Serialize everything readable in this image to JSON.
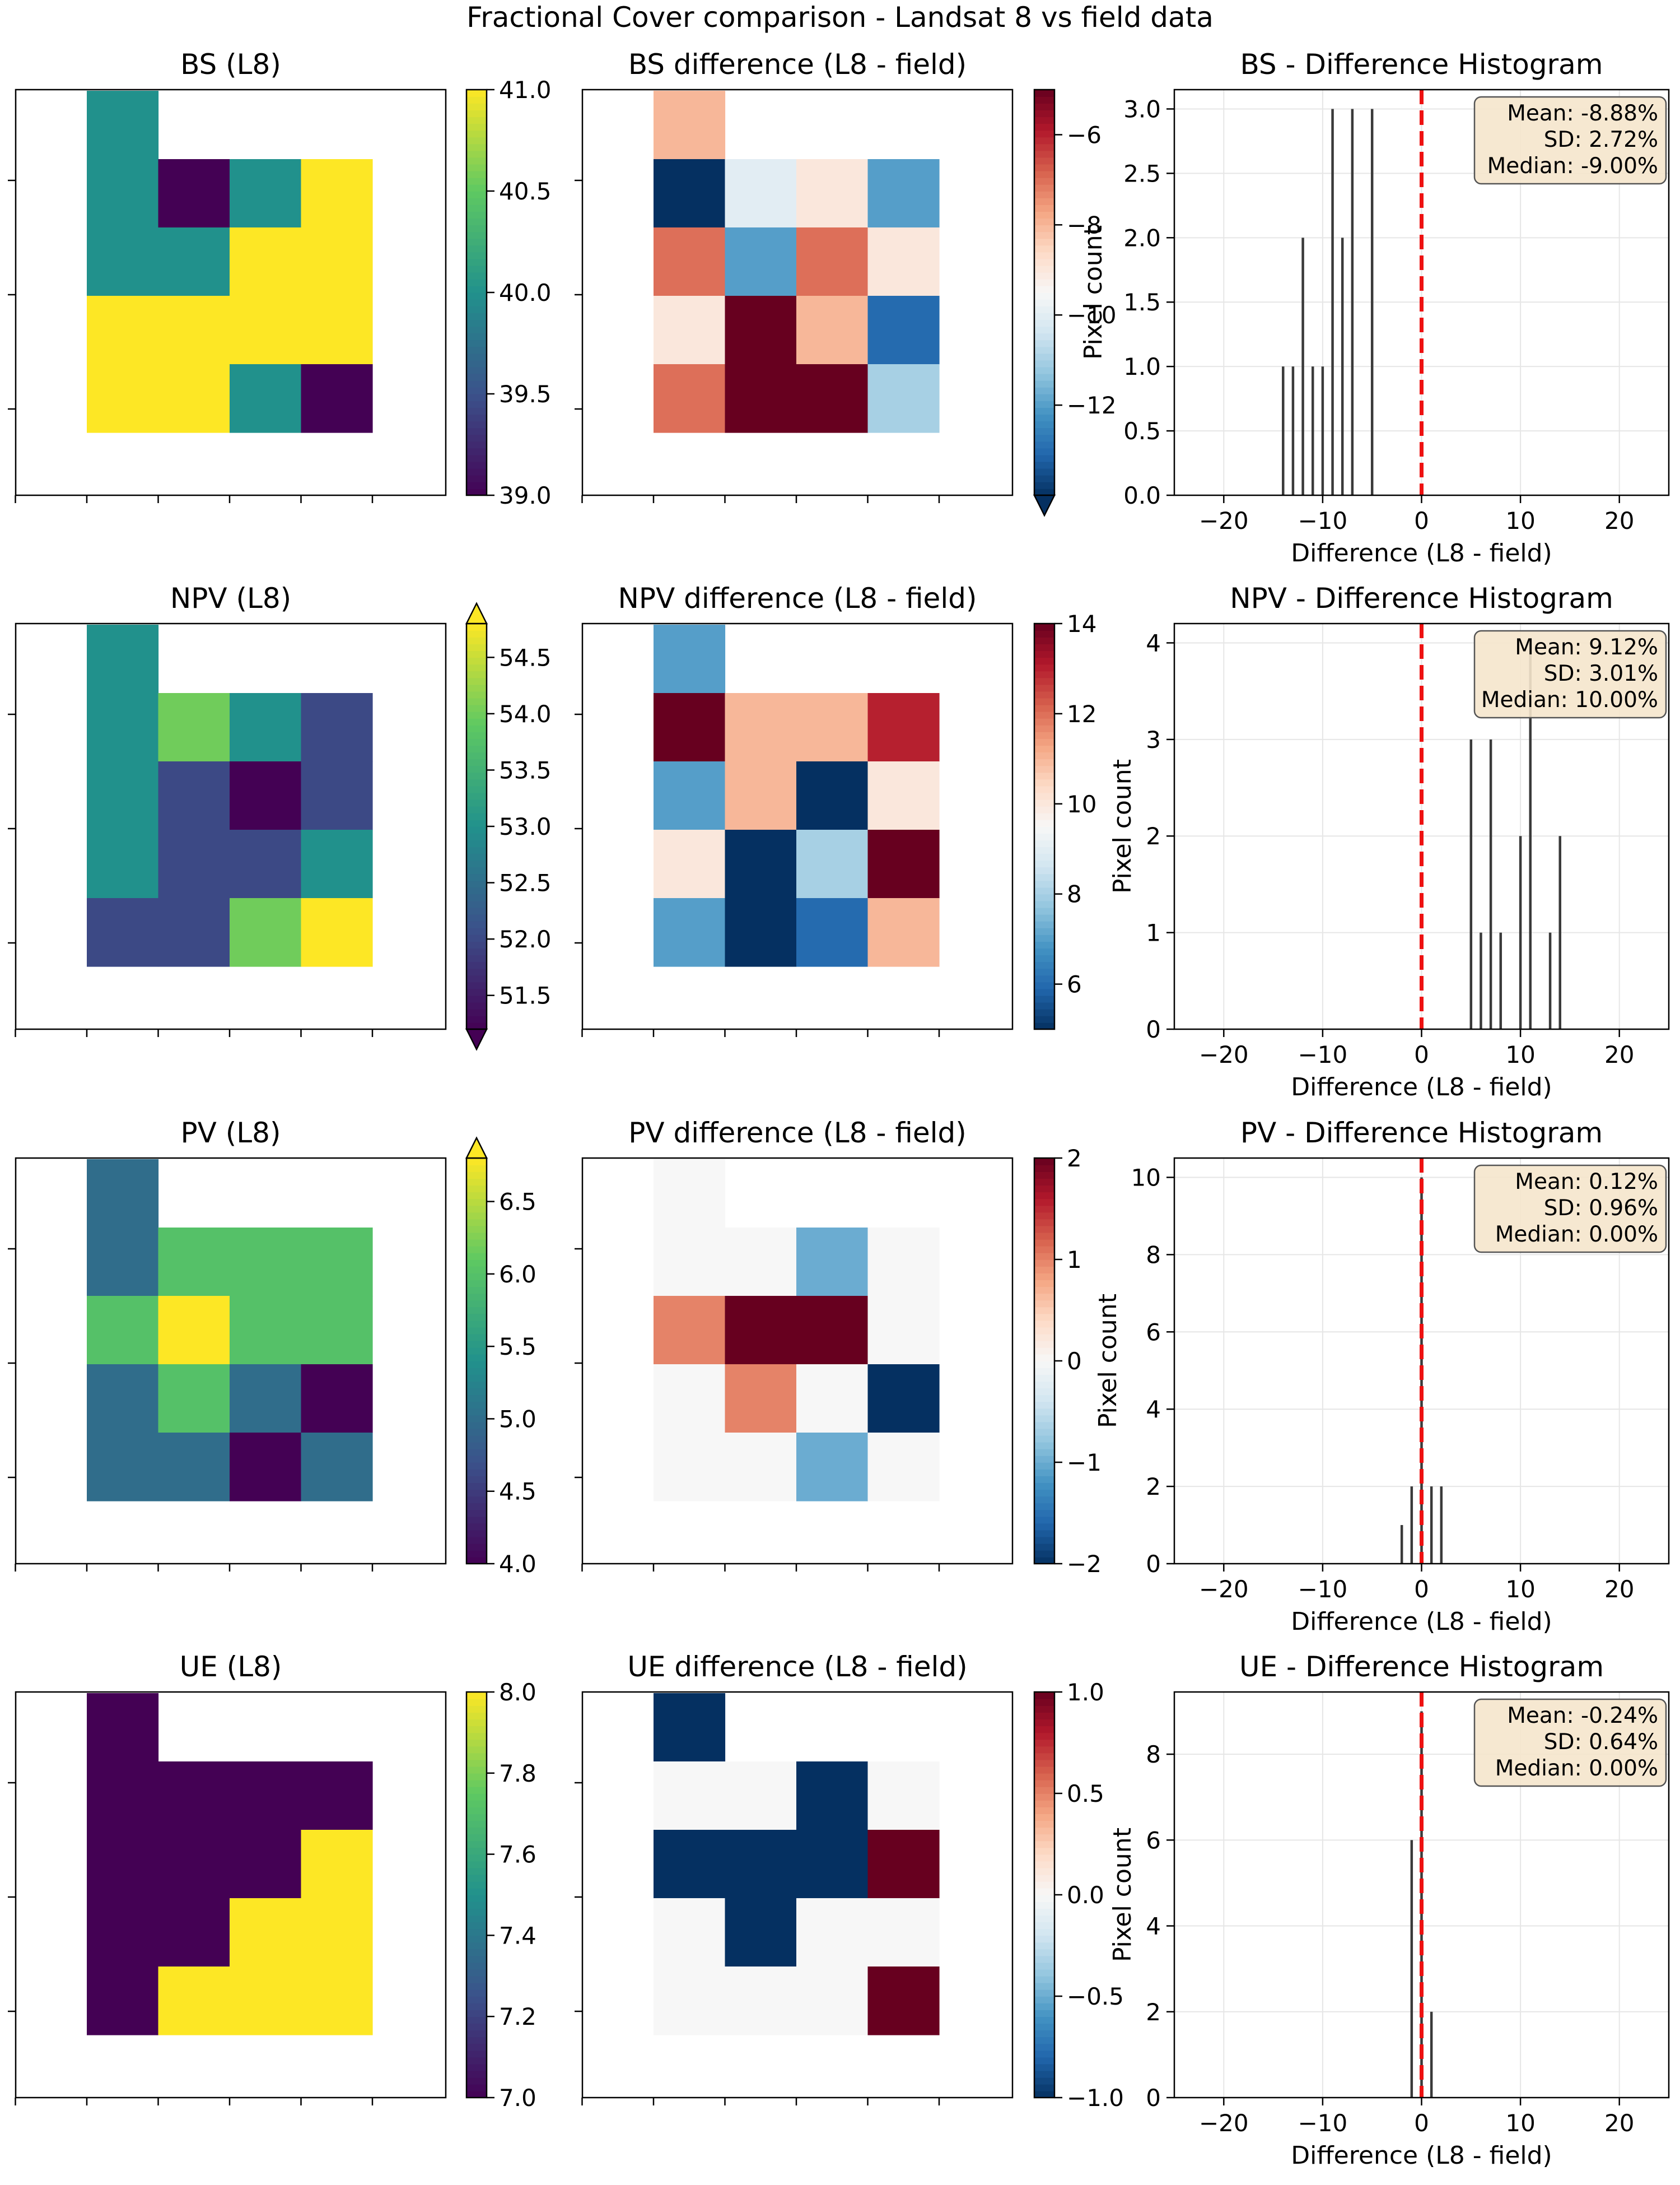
{
  "figure": {
    "title": "Fractional Cover comparison - Landsat 8 vs field data"
  },
  "chart_data": [
    {
      "type": "heatmap",
      "title": "BS (L8)",
      "cmap": "viridis",
      "clim": [
        39.0,
        41.0
      ],
      "colorbar_ticks": [
        "39.0",
        "39.5",
        "40.0",
        "40.5",
        "41.0"
      ],
      "colorbar_extend": "none",
      "grid": [
        [
          null,
          40,
          null,
          null,
          null
        ],
        [
          null,
          40,
          39,
          40,
          41
        ],
        [
          null,
          40,
          40,
          41,
          41
        ],
        [
          null,
          41,
          41,
          41,
          41
        ],
        [
          null,
          41,
          41,
          40,
          39
        ]
      ]
    },
    {
      "type": "heatmap",
      "title": "BS difference (L8 - field)",
      "cmap": "RdBu_r",
      "clim": [
        -14,
        -5
      ],
      "colorbar_ticks": [
        "−12",
        "−10",
        "−8",
        "−6"
      ],
      "colorbar_extend": "min",
      "grid": [
        [
          null,
          -8,
          null,
          null,
          null
        ],
        [
          null,
          -14,
          -10,
          -9,
          -12
        ],
        [
          null,
          -7,
          -12,
          -7,
          -9
        ],
        [
          null,
          -9,
          -5,
          -8,
          -13
        ],
        [
          null,
          -7,
          -5,
          -5,
          -11
        ]
      ]
    },
    {
      "type": "bar",
      "title": "BS - Difference Histogram",
      "xlabel": "Difference (L8 - field)",
      "ylabel": "Pixel count",
      "xlim": [
        -25,
        25
      ],
      "ylim": [
        0,
        3.15
      ],
      "xticks": [
        "−20",
        "−10",
        "0",
        "10",
        "20"
      ],
      "yticks": [
        "0.0",
        "0.5",
        "1.0",
        "1.5",
        "2.0",
        "2.5",
        "3.0"
      ],
      "x": [
        -14,
        -13,
        -12,
        -11,
        -10,
        -9,
        -8,
        -7,
        -5
      ],
      "values": [
        1,
        1,
        2,
        1,
        1,
        3,
        2,
        3,
        3
      ],
      "stats": [
        "Mean: -8.88%",
        "SD: 2.72%",
        "Median: -9.00%"
      ]
    },
    {
      "type": "heatmap",
      "title": "NPV (L8)",
      "cmap": "viridis",
      "clim": [
        51.2,
        54.8
      ],
      "colorbar_ticks": [
        "51.5",
        "52.0",
        "52.5",
        "53.0",
        "53.5",
        "54.0",
        "54.5"
      ],
      "colorbar_extend": "both",
      "grid": [
        [
          null,
          53,
          null,
          null,
          null
        ],
        [
          null,
          53,
          54,
          53,
          52
        ],
        [
          null,
          53,
          52,
          51,
          52
        ],
        [
          null,
          53,
          52,
          52,
          53
        ],
        [
          null,
          52,
          52,
          54,
          55
        ]
      ]
    },
    {
      "type": "heatmap",
      "title": "NPV difference (L8 - field)",
      "cmap": "RdBu_r",
      "clim": [
        5,
        14
      ],
      "colorbar_ticks": [
        "6",
        "8",
        "10",
        "12",
        "14"
      ],
      "colorbar_extend": "none",
      "grid": [
        [
          null,
          7,
          null,
          null,
          null
        ],
        [
          null,
          14,
          11,
          11,
          13
        ],
        [
          null,
          7,
          11,
          5,
          10
        ],
        [
          null,
          10,
          5,
          8,
          14
        ],
        [
          null,
          7,
          5,
          6,
          11
        ]
      ]
    },
    {
      "type": "bar",
      "title": "NPV - Difference Histogram",
      "xlabel": "Difference (L8 - field)",
      "ylabel": "Pixel count",
      "xlim": [
        -25,
        25
      ],
      "ylim": [
        0,
        4.2
      ],
      "xticks": [
        "−20",
        "−10",
        "0",
        "10",
        "20"
      ],
      "yticks": [
        "0",
        "1",
        "2",
        "3",
        "4"
      ],
      "x": [
        5,
        6,
        7,
        8,
        10,
        11,
        13,
        14
      ],
      "values": [
        3,
        1,
        3,
        1,
        2,
        4,
        1,
        2
      ],
      "stats": [
        "Mean: 9.12%",
        "SD: 3.01%",
        "Median: 10.00%"
      ]
    },
    {
      "type": "heatmap",
      "title": "PV (L8)",
      "cmap": "viridis",
      "clim": [
        4.0,
        6.8
      ],
      "colorbar_ticks": [
        "4.0",
        "4.5",
        "5.0",
        "5.5",
        "6.0",
        "6.5"
      ],
      "colorbar_extend": "max",
      "grid": [
        [
          null,
          5,
          null,
          null,
          null
        ],
        [
          null,
          5,
          6,
          6,
          6
        ],
        [
          null,
          6,
          7,
          6,
          6
        ],
        [
          null,
          5,
          6,
          5,
          4
        ],
        [
          null,
          5,
          5,
          4,
          5
        ]
      ]
    },
    {
      "type": "heatmap",
      "title": "PV difference (L8 - field)",
      "cmap": "RdBu_r",
      "clim": [
        -2,
        2
      ],
      "colorbar_ticks": [
        "−2",
        "−1",
        "0",
        "1",
        "2"
      ],
      "colorbar_extend": "none",
      "grid": [
        [
          null,
          0,
          null,
          null,
          null
        ],
        [
          null,
          0,
          0,
          -1,
          0
        ],
        [
          null,
          1,
          2,
          2,
          0
        ],
        [
          null,
          0,
          1,
          0,
          -2
        ],
        [
          null,
          0,
          0,
          -1,
          0
        ]
      ]
    },
    {
      "type": "bar",
      "title": "PV - Difference Histogram",
      "xlabel": "Difference (L8 - field)",
      "ylabel": "Pixel count",
      "xlim": [
        -25,
        25
      ],
      "ylim": [
        0,
        10.5
      ],
      "xticks": [
        "−20",
        "−10",
        "0",
        "10",
        "20"
      ],
      "yticks": [
        "0",
        "2",
        "4",
        "6",
        "8",
        "10"
      ],
      "x": [
        -2,
        -1,
        0,
        1,
        2
      ],
      "values": [
        1,
        2,
        10,
        2,
        2
      ],
      "stats": [
        "Mean: 0.12%",
        "SD: 0.96%",
        "Median: 0.00%"
      ]
    },
    {
      "type": "heatmap",
      "title": "UE (L8)",
      "cmap": "viridis",
      "clim": [
        7.0,
        8.0
      ],
      "colorbar_ticks": [
        "7.0",
        "7.2",
        "7.4",
        "7.6",
        "7.8",
        "8.0"
      ],
      "colorbar_extend": "none",
      "grid": [
        [
          null,
          7,
          null,
          null,
          null
        ],
        [
          null,
          7,
          7,
          7,
          7
        ],
        [
          null,
          7,
          7,
          7,
          8
        ],
        [
          null,
          7,
          7,
          8,
          8
        ],
        [
          null,
          7,
          8,
          8,
          8
        ]
      ]
    },
    {
      "type": "heatmap",
      "title": "UE difference (L8 - field)",
      "cmap": "RdBu_r",
      "clim": [
        -1,
        1
      ],
      "colorbar_ticks": [
        "−1.0",
        "−0.5",
        "0.0",
        "0.5",
        "1.0"
      ],
      "colorbar_extend": "none",
      "grid": [
        [
          null,
          -1,
          null,
          null,
          null
        ],
        [
          null,
          0,
          0,
          -1,
          0
        ],
        [
          null,
          -1,
          -1,
          -1,
          1
        ],
        [
          null,
          0,
          -1,
          0,
          0
        ],
        [
          null,
          0,
          0,
          0,
          1
        ]
      ]
    },
    {
      "type": "bar",
      "title": "UE - Difference Histogram",
      "xlabel": "Difference (L8 - field)",
      "ylabel": "Pixel count",
      "xlim": [
        -25,
        25
      ],
      "ylim": [
        0,
        9.45
      ],
      "xticks": [
        "−20",
        "−10",
        "0",
        "10",
        "20"
      ],
      "yticks": [
        "0",
        "2",
        "4",
        "6",
        "8"
      ],
      "x": [
        -1,
        0,
        1
      ],
      "values": [
        6,
        9,
        2
      ],
      "stats": [
        "Mean: -0.24%",
        "SD: 0.64%",
        "Median: 0.00%"
      ]
    }
  ]
}
